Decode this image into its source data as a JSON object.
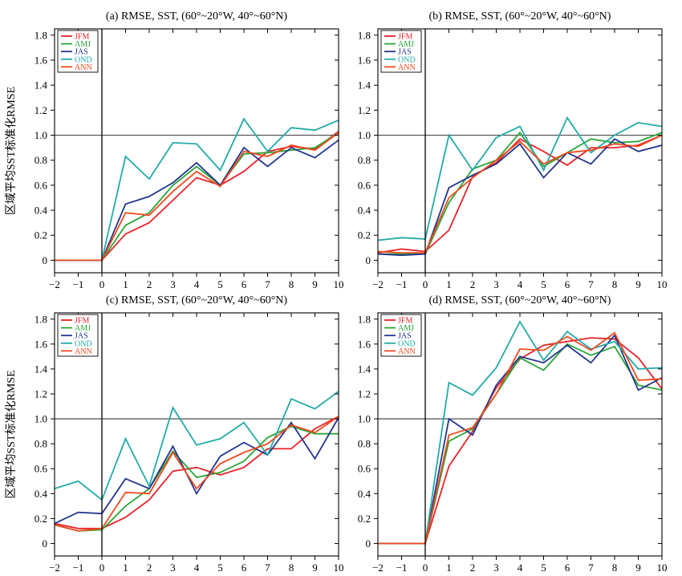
{
  "colors": {
    "JFM": "#e8232a",
    "AMJ": "#2aa637",
    "JAS": "#23348c",
    "OND": "#22aaa8",
    "ANN": "#f04a1e"
  },
  "chart_data": [
    {
      "type": "line",
      "title": "(a) RMSE, SST, (60°~20°W, 40°~60°N)",
      "ylabel": "区域平均SST标准化RMSE",
      "xlabel": "",
      "x": [
        -2,
        -1,
        0,
        1,
        2,
        3,
        4,
        5,
        6,
        7,
        8,
        9,
        10
      ],
      "xticks": [
        "−2",
        "−1",
        "0",
        "1",
        "2",
        "3",
        "4",
        "5",
        "6",
        "7",
        "8",
        "9",
        "10"
      ],
      "yticks": [
        "0",
        "0.2",
        "0.4",
        "0.6",
        "0.8",
        "1.0",
        "1.2",
        "1.4",
        "1.6",
        "1.8"
      ],
      "xlim": [
        -2,
        10
      ],
      "ylim": [
        -0.1,
        1.85
      ],
      "reference_lines": {
        "x": 0,
        "y": 1.0
      },
      "legend_position": "top-left",
      "series": [
        {
          "name": "JFM",
          "values": [
            0,
            0,
            0,
            0.21,
            0.3,
            0.48,
            0.66,
            0.6,
            0.71,
            0.87,
            0.91,
            0.89,
            1.03
          ]
        },
        {
          "name": "AMJ",
          "values": [
            0,
            0,
            0,
            0.28,
            0.38,
            0.6,
            0.75,
            0.6,
            0.85,
            0.86,
            0.88,
            0.9,
            1.02
          ]
        },
        {
          "name": "JAS",
          "values": [
            0,
            0,
            0,
            0.45,
            0.51,
            0.62,
            0.78,
            0.6,
            0.9,
            0.75,
            0.9,
            0.82,
            0.96
          ]
        },
        {
          "name": "OND",
          "values": [
            0,
            0,
            0,
            0.83,
            0.65,
            0.94,
            0.93,
            0.72,
            1.13,
            0.87,
            1.06,
            1.04,
            1.12
          ]
        },
        {
          "name": "ANN",
          "values": [
            0,
            0,
            0,
            0.38,
            0.36,
            0.55,
            0.71,
            0.59,
            0.87,
            0.83,
            0.92,
            0.88,
            1.02
          ]
        }
      ]
    },
    {
      "type": "line",
      "title": "(b) RMSE, SST, (60°~20°W, 40°~60°N)",
      "ylabel": "",
      "xlabel": "",
      "x": [
        -2,
        -1,
        0,
        1,
        2,
        3,
        4,
        5,
        6,
        7,
        8,
        9,
        10
      ],
      "xticks": [
        "−2",
        "−1",
        "0",
        "1",
        "2",
        "3",
        "4",
        "5",
        "6",
        "7",
        "8",
        "9",
        "10"
      ],
      "yticks": [
        "0",
        "0.2",
        "0.4",
        "0.6",
        "0.8",
        "1.0",
        "1.2",
        "1.4",
        "1.6",
        "1.8"
      ],
      "xlim": [
        -2,
        10
      ],
      "ylim": [
        -0.1,
        1.85
      ],
      "reference_lines": {
        "x": 0,
        "y": 1.0
      },
      "legend_position": "top-left",
      "series": [
        {
          "name": "JFM",
          "values": [
            0.06,
            0.09,
            0.07,
            0.24,
            0.67,
            0.78,
            0.97,
            0.87,
            0.76,
            0.9,
            0.9,
            0.92,
            1.0
          ]
        },
        {
          "name": "AMJ",
          "values": [
            0.05,
            0.05,
            0.05,
            0.46,
            0.73,
            0.8,
            1.02,
            0.75,
            0.86,
            0.97,
            0.94,
            0.95,
            1.02
          ]
        },
        {
          "name": "JAS",
          "values": [
            0.05,
            0.04,
            0.05,
            0.58,
            0.68,
            0.77,
            0.93,
            0.66,
            0.86,
            0.77,
            0.97,
            0.87,
            0.92
          ]
        },
        {
          "name": "OND",
          "values": [
            0.16,
            0.18,
            0.17,
            1.0,
            0.72,
            0.98,
            1.07,
            0.72,
            1.14,
            0.86,
            1.0,
            1.1,
            1.07
          ]
        },
        {
          "name": "ANN",
          "values": [
            0.07,
            0.06,
            0.06,
            0.5,
            0.66,
            0.8,
            0.95,
            0.77,
            0.86,
            0.88,
            0.93,
            0.91,
            1.0
          ]
        }
      ]
    },
    {
      "type": "line",
      "title": "(c) RMSE, SST, (60°~20°W, 40°~60°N)",
      "ylabel": "区域平均SST标准化RMSE",
      "xlabel": "",
      "x": [
        -2,
        -1,
        0,
        1,
        2,
        3,
        4,
        5,
        6,
        7,
        8,
        9,
        10
      ],
      "xticks": [
        "−2",
        "−1",
        "0",
        "1",
        "2",
        "3",
        "4",
        "5",
        "6",
        "7",
        "8",
        "9",
        "10"
      ],
      "yticks": [
        "0",
        "0.2",
        "0.4",
        "0.6",
        "0.8",
        "1.0",
        "1.2",
        "1.4",
        "1.6",
        "1.8"
      ],
      "xlim": [
        -2,
        10
      ],
      "ylim": [
        -0.1,
        1.85
      ],
      "reference_lines": {
        "x": 0,
        "y": 1.0
      },
      "legend_position": "top-left",
      "series": [
        {
          "name": "JFM",
          "values": [
            0.16,
            0.12,
            0.12,
            0.21,
            0.35,
            0.58,
            0.61,
            0.55,
            0.61,
            0.76,
            0.76,
            0.92,
            1.02
          ]
        },
        {
          "name": "AMJ",
          "values": [
            0.15,
            0.1,
            0.11,
            0.3,
            0.44,
            0.74,
            0.53,
            0.57,
            0.66,
            0.85,
            0.94,
            0.88,
            0.88
          ]
        },
        {
          "name": "JAS",
          "values": [
            0.16,
            0.25,
            0.24,
            0.52,
            0.44,
            0.78,
            0.4,
            0.7,
            0.81,
            0.71,
            0.97,
            0.68,
            1.01
          ]
        },
        {
          "name": "OND",
          "values": [
            0.44,
            0.5,
            0.35,
            0.84,
            0.46,
            1.09,
            0.79,
            0.84,
            0.97,
            0.71,
            1.16,
            1.08,
            1.22
          ]
        },
        {
          "name": "ANN",
          "values": [
            0.15,
            0.1,
            0.12,
            0.41,
            0.4,
            0.73,
            0.44,
            0.64,
            0.73,
            0.8,
            0.95,
            0.89,
            1.02
          ]
        }
      ]
    },
    {
      "type": "line",
      "title": "(d) RMSE, SST, (60°~20°W, 40°~60°N)",
      "ylabel": "",
      "xlabel": "",
      "x": [
        -2,
        -1,
        0,
        1,
        2,
        3,
        4,
        5,
        6,
        7,
        8,
        9,
        10
      ],
      "xticks": [
        "−2",
        "−1",
        "0",
        "1",
        "2",
        "3",
        "4",
        "5",
        "6",
        "7",
        "8",
        "9",
        "10"
      ],
      "yticks": [
        "0",
        "0.2",
        "0.4",
        "0.6",
        "0.8",
        "1.0",
        "1.2",
        "1.4",
        "1.6",
        "1.8"
      ],
      "xlim": [
        -2,
        10
      ],
      "ylim": [
        -0.1,
        1.85
      ],
      "reference_lines": {
        "x": 0,
        "y": 1.0
      },
      "legend_position": "top-left",
      "series": [
        {
          "name": "JFM",
          "values": [
            0,
            0,
            0,
            0.62,
            0.9,
            1.25,
            1.48,
            1.59,
            1.62,
            1.65,
            1.64,
            1.49,
            1.24
          ]
        },
        {
          "name": "AMJ",
          "values": [
            0,
            0,
            0,
            0.82,
            0.92,
            1.2,
            1.49,
            1.39,
            1.6,
            1.51,
            1.58,
            1.27,
            1.23
          ]
        },
        {
          "name": "JAS",
          "values": [
            0,
            0,
            0,
            1.0,
            0.87,
            1.27,
            1.5,
            1.45,
            1.59,
            1.45,
            1.67,
            1.23,
            1.33
          ]
        },
        {
          "name": "OND",
          "values": [
            0,
            0,
            0,
            1.29,
            1.19,
            1.41,
            1.78,
            1.47,
            1.7,
            1.56,
            1.62,
            1.4,
            1.41
          ]
        },
        {
          "name": "ANN",
          "values": [
            0,
            0,
            0,
            0.87,
            0.93,
            1.2,
            1.56,
            1.55,
            1.66,
            1.55,
            1.69,
            1.31,
            1.32
          ]
        }
      ]
    }
  ]
}
